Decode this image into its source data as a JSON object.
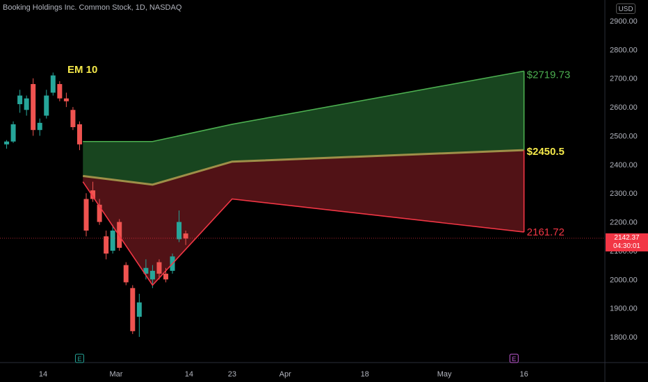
{
  "header": {
    "title": "Booking Holdings Inc. Common Stock, 1D, NASDAQ",
    "currency": "USD"
  },
  "current_price": {
    "price": "2142.37",
    "countdown": "04:30:01"
  },
  "chart_data": {
    "type": "candlestick",
    "title": "Booking Holdings Inc. Common Stock, 1D, NASDAQ",
    "ylim": [
      1750,
      2950
    ],
    "y_ticks": [
      "2900.00",
      "2800.00",
      "2700.00",
      "2600.00",
      "2500.00",
      "2400.00",
      "2300.00",
      "2200.00",
      "2100.00",
      "2000.00",
      "1900.00",
      "1800.00"
    ],
    "y_tick_values": [
      2900,
      2800,
      2700,
      2600,
      2500,
      2400,
      2300,
      2200,
      2100,
      2000,
      1900,
      1800
    ],
    "x_ticks": [
      "14",
      "Mar",
      "14",
      "23",
      "Apr",
      "18",
      "May",
      "16"
    ],
    "x_tick_days": [
      0,
      22,
      44,
      57,
      73,
      97,
      121,
      145
    ],
    "candles": [
      {
        "d": -11,
        "o": 2470,
        "h": 2485,
        "l": 2455,
        "c": 2480
      },
      {
        "d": -9,
        "o": 2480,
        "h": 2550,
        "l": 2475,
        "c": 2540
      },
      {
        "d": -7,
        "o": 2610,
        "h": 2660,
        "l": 2580,
        "c": 2640
      },
      {
        "d": -5,
        "o": 2590,
        "h": 2640,
        "l": 2570,
        "c": 2630
      },
      {
        "d": -3,
        "o": 2680,
        "h": 2700,
        "l": 2500,
        "c": 2520
      },
      {
        "d": -1,
        "o": 2520,
        "h": 2560,
        "l": 2500,
        "c": 2545
      },
      {
        "d": 1,
        "o": 2570,
        "h": 2660,
        "l": 2560,
        "c": 2640
      },
      {
        "d": 3,
        "o": 2650,
        "h": 2720,
        "l": 2640,
        "c": 2710
      },
      {
        "d": 5,
        "o": 2680,
        "h": 2690,
        "l": 2620,
        "c": 2630
      },
      {
        "d": 7,
        "o": 2630,
        "h": 2650,
        "l": 2600,
        "c": 2620
      },
      {
        "d": 9,
        "o": 2590,
        "h": 2600,
        "l": 2520,
        "c": 2530
      },
      {
        "d": 11,
        "o": 2540,
        "h": 2550,
        "l": 2450,
        "c": 2470
      },
      {
        "d": 13,
        "o": 2280,
        "h": 2300,
        "l": 2150,
        "c": 2170
      },
      {
        "d": 15,
        "o": 2310,
        "h": 2340,
        "l": 2270,
        "c": 2280
      },
      {
        "d": 17,
        "o": 2260,
        "h": 2280,
        "l": 2190,
        "c": 2200
      },
      {
        "d": 19,
        "o": 2150,
        "h": 2170,
        "l": 2070,
        "c": 2090
      },
      {
        "d": 21,
        "o": 2100,
        "h": 2190,
        "l": 2090,
        "c": 2170
      },
      {
        "d": 23,
        "o": 2200,
        "h": 2210,
        "l": 2100,
        "c": 2110
      },
      {
        "d": 25,
        "o": 2050,
        "h": 2060,
        "l": 1980,
        "c": 1990
      },
      {
        "d": 27,
        "o": 1970,
        "h": 1980,
        "l": 1810,
        "c": 1820
      },
      {
        "d": 29,
        "o": 1870,
        "h": 1950,
        "l": 1800,
        "c": 1920
      },
      {
        "d": 31,
        "o": 2020,
        "h": 2070,
        "l": 2000,
        "c": 2040
      },
      {
        "d": 33,
        "o": 2000,
        "h": 2050,
        "l": 1970,
        "c": 2030
      },
      {
        "d": 35,
        "o": 2060,
        "h": 2070,
        "l": 2000,
        "c": 2020
      },
      {
        "d": 37,
        "o": 2020,
        "h": 2040,
        "l": 1990,
        "c": 2000
      },
      {
        "d": 39,
        "o": 2030,
        "h": 2090,
        "l": 2020,
        "c": 2080
      },
      {
        "d": 41,
        "o": 2140,
        "h": 2240,
        "l": 2130,
        "c": 2200
      },
      {
        "d": 43,
        "o": 2160,
        "h": 2170,
        "l": 2120,
        "c": 2142.37
      }
    ],
    "expected_move": {
      "label": "EM 10",
      "upper": {
        "points": [
          [
            12,
            2480
          ],
          [
            33,
            2480
          ],
          [
            57,
            2540
          ],
          [
            145,
            2725
          ]
        ],
        "end_label": "$2719.73"
      },
      "middle": {
        "points": [
          [
            12,
            2360
          ],
          [
            33,
            2330
          ],
          [
            57,
            2410
          ],
          [
            145,
            2450
          ]
        ],
        "end_label": "$2450.5"
      },
      "lower": {
        "points": [
          [
            12,
            2340
          ],
          [
            33,
            1980
          ],
          [
            57,
            2280
          ],
          [
            145,
            2165
          ]
        ],
        "end_label": "2161.72"
      }
    },
    "markers": [
      {
        "d": 11,
        "label": "E"
      },
      {
        "d": 142,
        "label": "E"
      }
    ],
    "colors": {
      "up": "#26a69a",
      "down": "#ef5350",
      "upper_line": "#4caf50",
      "middle_line": "#9e8f48",
      "lower_line": "#f23645",
      "upper_fill": "#1b4d22",
      "lower_fill": "#5a1418",
      "em_label": "#f5e94a",
      "upper_label": "#4caf50",
      "middle_label": "#f5e94a",
      "lower_label": "#f23645"
    }
  }
}
